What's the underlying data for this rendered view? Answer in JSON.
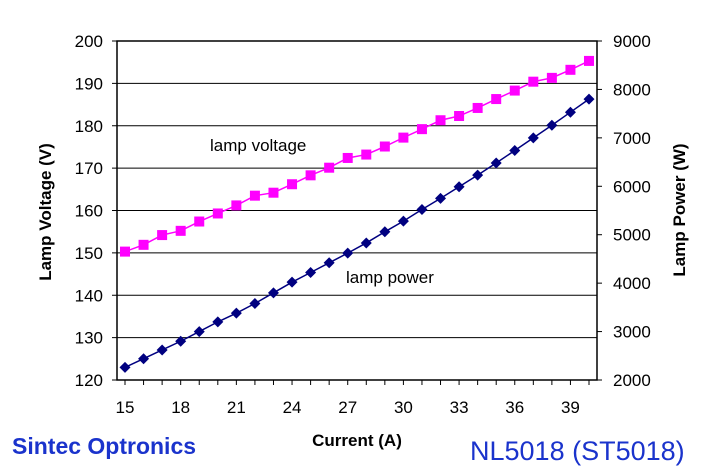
{
  "chart_data": {
    "type": "line",
    "x": [
      15,
      16,
      17,
      18,
      19,
      20,
      21,
      22,
      23,
      24,
      25,
      26,
      27,
      28,
      29,
      30,
      31,
      32,
      33,
      34,
      35,
      36,
      37,
      38,
      39,
      40
    ],
    "xlabel": "Current (A)",
    "xlim": [
      15,
      40
    ],
    "xticks": [
      "15",
      "18",
      "21",
      "24",
      "27",
      "30",
      "33",
      "36",
      "39"
    ],
    "ylabel": "Lamp Voltage (V)",
    "ylim": [
      120,
      200
    ],
    "yticks": [
      "120",
      "130",
      "140",
      "150",
      "160",
      "170",
      "180",
      "190",
      "200"
    ],
    "y2label": "Lamp Power (W)",
    "y2lim": [
      2000,
      9000
    ],
    "y2ticks": [
      "2000",
      "3000",
      "4000",
      "5000",
      "6000",
      "7000",
      "8000",
      "9000"
    ],
    "grid": "horizontal",
    "series": [
      {
        "name": "lamp voltage",
        "axis": "left",
        "color": "#ff00ff",
        "marker": "square",
        "values": [
          150.3,
          151.9,
          154.2,
          155.2,
          157.4,
          159.3,
          161.2,
          163.5,
          164.2,
          166.2,
          168.3,
          170.1,
          172.4,
          173.2,
          175.1,
          177.2,
          179.2,
          181.3,
          182.3,
          184.2,
          186.3,
          188.3,
          190.4,
          191.3,
          193.2,
          195.3
        ]
      },
      {
        "name": "lamp power",
        "axis": "right",
        "color": "#000080",
        "marker": "diamond",
        "values": [
          2260,
          2440,
          2620,
          2800,
          3000,
          3200,
          3380,
          3580,
          3800,
          4020,
          4220,
          4420,
          4620,
          4830,
          5060,
          5280,
          5520,
          5750,
          5990,
          6230,
          6480,
          6740,
          7000,
          7260,
          7530,
          7800
        ]
      }
    ],
    "annotations": [
      "lamp voltage",
      "lamp power"
    ]
  },
  "footer": {
    "brand": "Sintec Optronics",
    "model": "NL5018 (ST5018)"
  }
}
